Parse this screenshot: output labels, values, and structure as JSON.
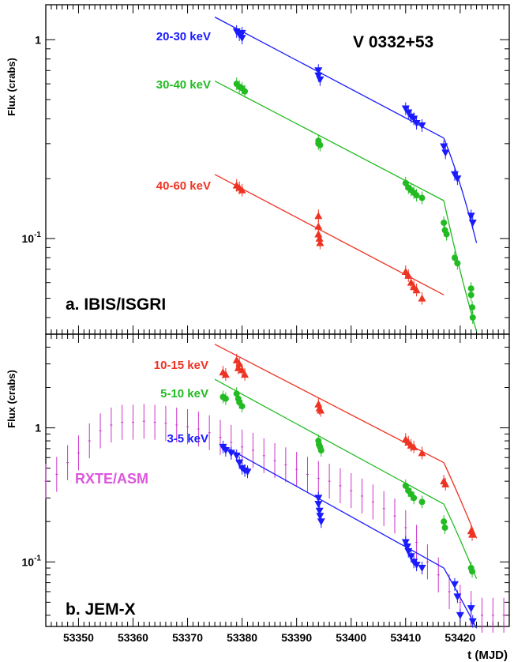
{
  "chart_data": [
    {
      "type": "scatter",
      "panel_label": "a. IBIS/ISGRI",
      "source_title": "V 0332+53",
      "ylabel": "Flux (crabs)",
      "xlabel": "",
      "xlim": [
        53344,
        53429
      ],
      "ylim": [
        0.033,
        1.5
      ],
      "yscale": "log",
      "y_tick_labels": [
        "1",
        "10^-1"
      ],
      "series": [
        {
          "name": "20-30 keV",
          "color": "#1a1aff",
          "marker": "triangle-down",
          "points": [
            [
              53379,
              1.1
            ],
            [
              53379.5,
              1.06
            ],
            [
              53380,
              1.02
            ],
            [
              53380,
              1.08
            ],
            [
              53394,
              0.7
            ],
            [
              53394,
              0.66
            ],
            [
              53394.3,
              0.63
            ],
            [
              53410,
              0.45
            ],
            [
              53410.5,
              0.43
            ],
            [
              53411,
              0.41
            ],
            [
              53411.5,
              0.4
            ],
            [
              53412,
              0.38
            ],
            [
              53413,
              0.37
            ],
            [
              53417,
              0.29
            ],
            [
              53417.3,
              0.27
            ],
            [
              53419,
              0.21
            ],
            [
              53419.5,
              0.2
            ],
            [
              53422,
              0.13
            ],
            [
              53422.3,
              0.12
            ]
          ],
          "fit": [
            [
              53375,
              1.3
            ],
            [
              53417,
              0.32
            ]
          ],
          "fit_tail": [
            [
              53417,
              0.32
            ],
            [
              53420,
              0.2
            ],
            [
              53423,
              0.095
            ]
          ]
        },
        {
          "name": "30-40 keV",
          "color": "#22bb22",
          "marker": "circle",
          "points": [
            [
              53379,
              0.6
            ],
            [
              53379.5,
              0.58
            ],
            [
              53380,
              0.57
            ],
            [
              53380.5,
              0.55
            ],
            [
              53394,
              0.31
            ],
            [
              53394,
              0.3
            ],
            [
              53394.3,
              0.295
            ],
            [
              53410,
              0.19
            ],
            [
              53410.5,
              0.18
            ],
            [
              53411,
              0.175
            ],
            [
              53411.5,
              0.17
            ],
            [
              53412,
              0.165
            ],
            [
              53413,
              0.16
            ],
            [
              53417,
              0.12
            ],
            [
              53417.2,
              0.11
            ],
            [
              53417.5,
              0.105
            ],
            [
              53419,
              0.08
            ],
            [
              53419.5,
              0.075
            ],
            [
              53422,
              0.056
            ],
            [
              53422,
              0.052
            ],
            [
              53422.2,
              0.045
            ],
            [
              53422.3,
              0.04
            ]
          ],
          "fit": [
            [
              53375,
              0.62
            ],
            [
              53417,
              0.155
            ]
          ],
          "fit_tail": [
            [
              53417,
              0.155
            ],
            [
              53420,
              0.065
            ],
            [
              53423,
              0.034
            ]
          ]
        },
        {
          "name": "40-60 keV",
          "color": "#ee3322",
          "marker": "triangle-up",
          "points": [
            [
              53379,
              0.185
            ],
            [
              53379.5,
              0.18
            ],
            [
              53380,
              0.175
            ],
            [
              53394,
              0.13
            ],
            [
              53394,
              0.115
            ],
            [
              53394,
              0.105
            ],
            [
              53394.2,
              0.1
            ],
            [
              53394.3,
              0.095
            ],
            [
              53410,
              0.068
            ],
            [
              53410.5,
              0.065
            ],
            [
              53411,
              0.06
            ],
            [
              53411.5,
              0.057
            ],
            [
              53412,
              0.055
            ],
            [
              53413,
              0.05
            ]
          ],
          "fit": [
            [
              53375,
              0.21
            ],
            [
              53417,
              0.052
            ]
          ]
        }
      ]
    },
    {
      "type": "scatter",
      "panel_label": "b. JEM-X",
      "ylabel": "Flux (crabs)",
      "xlabel": "t (MJD)",
      "xlim": [
        53344,
        53429
      ],
      "ylim": [
        0.033,
        5
      ],
      "yscale": "log",
      "x_tick_labels": [
        "53350",
        "53360",
        "53370",
        "53380",
        "53390",
        "53400",
        "53410",
        "53420"
      ],
      "y_tick_labels": [
        "1",
        "10^-1"
      ],
      "series": [
        {
          "name": "10-15 keV",
          "color": "#ee3322",
          "marker": "triangle-up",
          "points": [
            [
              53376.5,
              2.6
            ],
            [
              53377,
              2.5
            ],
            [
              53379,
              3.2
            ],
            [
              53379.3,
              2.8
            ],
            [
              53379.5,
              3.0
            ],
            [
              53380,
              2.7
            ],
            [
              53380.5,
              2.5
            ],
            [
              53394,
              1.5
            ],
            [
              53394.2,
              1.4
            ],
            [
              53394.4,
              1.35
            ],
            [
              53410,
              0.82
            ],
            [
              53410.5,
              0.78
            ],
            [
              53411,
              0.74
            ],
            [
              53411.5,
              0.72
            ],
            [
              53413,
              0.65
            ],
            [
              53417,
              0.4
            ],
            [
              53417.3,
              0.38
            ],
            [
              53422,
              0.17
            ],
            [
              53422.2,
              0.16
            ]
          ],
          "fit": [
            [
              53375,
              4.2
            ],
            [
              53417,
              0.55
            ]
          ],
          "fit_tail": [
            [
              53417,
              0.55
            ],
            [
              53420,
              0.3
            ],
            [
              53423,
              0.15
            ]
          ]
        },
        {
          "name": "5-10 keV",
          "color": "#22bb22",
          "marker": "circle",
          "points": [
            [
              53376.5,
              1.7
            ],
            [
              53377,
              1.65
            ],
            [
              53379,
              1.8
            ],
            [
              53379.3,
              1.65
            ],
            [
              53379.5,
              1.55
            ],
            [
              53380,
              1.45
            ],
            [
              53394,
              0.8
            ],
            [
              53394.1,
              0.75
            ],
            [
              53394.3,
              0.72
            ],
            [
              53394.5,
              0.68
            ],
            [
              53410,
              0.37
            ],
            [
              53410.5,
              0.34
            ],
            [
              53411,
              0.32
            ],
            [
              53411.5,
              0.3
            ],
            [
              53413,
              0.28
            ],
            [
              53417,
              0.2
            ],
            [
              53417.2,
              0.18
            ],
            [
              53422,
              0.09
            ],
            [
              53422.2,
              0.085
            ]
          ],
          "fit": [
            [
              53375,
              2.3
            ],
            [
              53417,
              0.27
            ]
          ],
          "fit_tail": [
            [
              53417,
              0.27
            ],
            [
              53420,
              0.15
            ],
            [
              53423,
              0.075
            ]
          ]
        },
        {
          "name": "3-5 keV",
          "color": "#1a1aff",
          "marker": "triangle-down",
          "points": [
            [
              53376.5,
              0.72
            ],
            [
              53377,
              0.68
            ],
            [
              53378,
              0.65
            ],
            [
              53379,
              0.62
            ],
            [
              53379.5,
              0.55
            ],
            [
              53380,
              0.5
            ],
            [
              53380.5,
              0.48
            ],
            [
              53381,
              0.47
            ],
            [
              53394,
              0.3
            ],
            [
              53394,
              0.27
            ],
            [
              53394.2,
              0.24
            ],
            [
              53394.3,
              0.22
            ],
            [
              53394.5,
              0.2
            ],
            [
              53410,
              0.14
            ],
            [
              53410.3,
              0.13
            ],
            [
              53410.5,
              0.12
            ],
            [
              53411,
              0.11
            ],
            [
              53411.5,
              0.1
            ],
            [
              53412,
              0.095
            ],
            [
              53413,
              0.09
            ],
            [
              53419,
              0.068
            ],
            [
              53419.5,
              0.055
            ],
            [
              53420,
              0.04
            ],
            [
              53422,
              0.045
            ],
            [
              53422.3,
              0.036
            ]
          ],
          "fit": [
            [
              53377,
              0.72
            ],
            [
              53417,
              0.09
            ]
          ],
          "fit_tail": [
            [
              53417,
              0.09
            ],
            [
              53420,
              0.055
            ],
            [
              53423,
              0.032
            ]
          ]
        },
        {
          "name": "RXTE/ASM",
          "color": "#cc33cc",
          "marker": "errorbar",
          "points": [
            [
              53344,
              0.4
            ],
            [
              53346,
              0.45
            ],
            [
              53348,
              0.55
            ],
            [
              53350,
              0.65
            ],
            [
              53352,
              0.8
            ],
            [
              53354,
              0.95
            ],
            [
              53356,
              1.05
            ],
            [
              53358,
              1.1
            ],
            [
              53360,
              1.1
            ],
            [
              53362,
              1.12
            ],
            [
              53364,
              1.1
            ],
            [
              53366,
              1.08
            ],
            [
              53368,
              1.05
            ],
            [
              53370,
              1.02
            ],
            [
              53372,
              0.98
            ],
            [
              53374,
              0.92
            ],
            [
              53376,
              0.85
            ],
            [
              53378,
              0.78
            ],
            [
              53380,
              0.72
            ],
            [
              53382,
              0.68
            ],
            [
              53384,
              0.62
            ],
            [
              53386,
              0.57
            ],
            [
              53388,
              0.53
            ],
            [
              53390,
              0.49
            ],
            [
              53392,
              0.45
            ],
            [
              53394,
              0.42
            ],
            [
              53396,
              0.4
            ],
            [
              53398,
              0.37
            ],
            [
              53400,
              0.34
            ],
            [
              53402,
              0.31
            ],
            [
              53404,
              0.28
            ],
            [
              53406,
              0.25
            ],
            [
              53408,
              0.22
            ],
            [
              53410,
              0.18
            ],
            [
              53412,
              0.14
            ],
            [
              53414,
              0.1
            ],
            [
              53416,
              0.08
            ],
            [
              53418,
              0.06
            ],
            [
              53420,
              0.05
            ],
            [
              53422,
              0.045
            ],
            [
              53424,
              0.04
            ],
            [
              53426,
              0.04
            ],
            [
              53428,
              0.04
            ]
          ]
        }
      ]
    }
  ]
}
